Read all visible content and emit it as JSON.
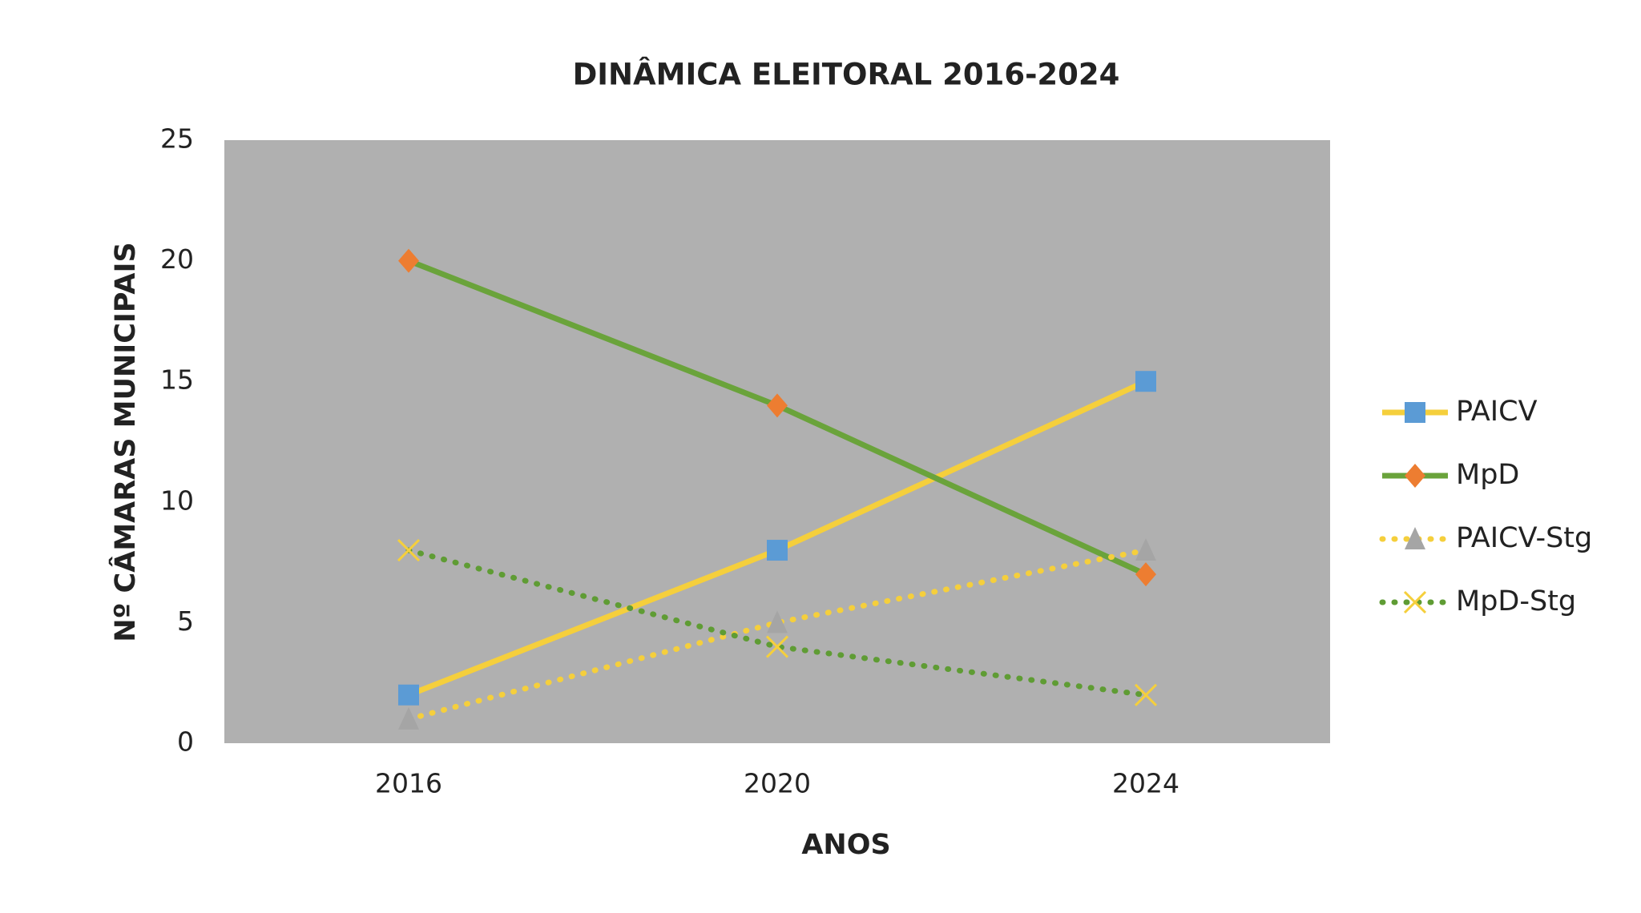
{
  "chart_data": {
    "type": "line",
    "title": "DINÂMICA ELEITORAL 2016-2024",
    "x_label": "ANOS",
    "y_label": "Nº CÂMARAS MUNICIPAIS",
    "categories": [
      "2016",
      "2020",
      "2024"
    ],
    "series": [
      {
        "name": "PAICV",
        "color": "#f5cf3c",
        "marker_color": "#5b9bd5",
        "marker": "square",
        "dash": "solid",
        "values": [
          2,
          8,
          15
        ]
      },
      {
        "name": "MpD",
        "color": "#6aa33b",
        "marker_color": "#ed7d31",
        "marker": "diamond",
        "dash": "solid",
        "values": [
          20,
          14,
          7
        ]
      },
      {
        "name": "PAICV-Stg",
        "color": "#f5cf3c",
        "marker_color": "#a5a5a5",
        "marker": "triangle",
        "dash": "dotted",
        "values": [
          1,
          5,
          8
        ]
      },
      {
        "name": "MpD-Stg",
        "color": "#5f9c34",
        "marker_color": "#f5cf3c",
        "marker": "x",
        "dash": "dotted",
        "values": [
          8,
          4,
          2
        ]
      }
    ],
    "ylim": [
      0,
      25
    ],
    "yticks": [
      0,
      5,
      10,
      15,
      20,
      25
    ],
    "plot_background": "#b0b0b0",
    "grid": false,
    "legend": "right"
  }
}
